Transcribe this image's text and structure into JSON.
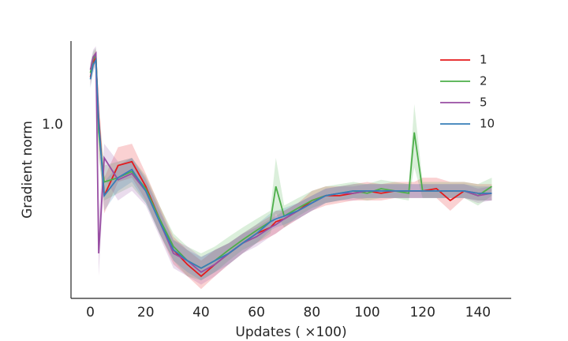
{
  "chart_data": {
    "type": "line",
    "xlabel": "Updates ( ×100)",
    "ylabel": "Gradient norm",
    "x": [
      0,
      1,
      2,
      3,
      5,
      10,
      15,
      20,
      25,
      30,
      35,
      40,
      45,
      50,
      55,
      60,
      65,
      67,
      70,
      75,
      80,
      85,
      90,
      95,
      100,
      105,
      110,
      115,
      117,
      120,
      125,
      130,
      135,
      140,
      145
    ],
    "series": [
      {
        "name": "1",
        "color": "#e41a1c",
        "values": [
          1.38,
          1.52,
          1.58,
          1.05,
          0.62,
          0.76,
          0.78,
          0.66,
          0.53,
          0.43,
          0.39,
          0.36,
          0.39,
          0.42,
          0.45,
          0.48,
          0.5,
          0.52,
          0.53,
          0.56,
          0.6,
          0.62,
          0.62,
          0.63,
          0.64,
          0.63,
          0.64,
          0.64,
          0.64,
          0.64,
          0.65,
          0.6,
          0.64,
          0.63,
          0.63
        ],
        "lower": [
          1.3,
          1.45,
          1.5,
          0.85,
          0.55,
          0.68,
          0.7,
          0.6,
          0.48,
          0.39,
          0.36,
          0.33,
          0.36,
          0.39,
          0.42,
          0.45,
          0.47,
          0.48,
          0.5,
          0.53,
          0.56,
          0.58,
          0.59,
          0.6,
          0.6,
          0.6,
          0.61,
          0.61,
          0.61,
          0.61,
          0.61,
          0.56,
          0.61,
          0.6,
          0.6
        ],
        "upper": [
          1.46,
          1.6,
          1.66,
          1.2,
          0.7,
          0.86,
          0.88,
          0.72,
          0.58,
          0.47,
          0.43,
          0.4,
          0.43,
          0.45,
          0.48,
          0.51,
          0.54,
          0.56,
          0.56,
          0.59,
          0.64,
          0.66,
          0.66,
          0.67,
          0.68,
          0.67,
          0.68,
          0.68,
          0.68,
          0.7,
          0.7,
          0.68,
          0.68,
          0.67,
          0.67
        ]
      },
      {
        "name": "2",
        "color": "#4daf4a",
        "values": [
          1.42,
          1.56,
          1.6,
          0.95,
          0.68,
          0.7,
          0.73,
          0.65,
          0.53,
          0.44,
          0.4,
          0.38,
          0.4,
          0.43,
          0.46,
          0.49,
          0.52,
          0.66,
          0.54,
          0.57,
          0.6,
          0.62,
          0.63,
          0.64,
          0.63,
          0.65,
          0.64,
          0.63,
          0.95,
          0.64,
          0.64,
          0.64,
          0.64,
          0.62,
          0.66
        ],
        "lower": [
          1.34,
          1.48,
          1.52,
          0.8,
          0.6,
          0.63,
          0.66,
          0.59,
          0.48,
          0.4,
          0.36,
          0.35,
          0.37,
          0.4,
          0.43,
          0.45,
          0.48,
          0.55,
          0.5,
          0.54,
          0.57,
          0.59,
          0.6,
          0.61,
          0.6,
          0.61,
          0.61,
          0.6,
          0.75,
          0.61,
          0.61,
          0.61,
          0.61,
          0.58,
          0.62
        ],
        "upper": [
          1.5,
          1.64,
          1.68,
          1.1,
          0.76,
          0.78,
          0.8,
          0.71,
          0.58,
          0.48,
          0.44,
          0.42,
          0.44,
          0.47,
          0.5,
          0.53,
          0.56,
          0.8,
          0.58,
          0.61,
          0.64,
          0.66,
          0.67,
          0.68,
          0.67,
          0.69,
          0.68,
          0.67,
          1.15,
          0.68,
          0.68,
          0.68,
          0.68,
          0.67,
          0.7
        ]
      },
      {
        "name": "5",
        "color": "#984ea3",
        "values": [
          1.45,
          1.58,
          1.62,
          0.42,
          0.8,
          0.69,
          0.72,
          0.64,
          0.52,
          0.42,
          0.4,
          0.37,
          0.39,
          0.42,
          0.45,
          0.47,
          0.5,
          0.51,
          0.53,
          0.56,
          0.59,
          0.62,
          0.63,
          0.63,
          0.64,
          0.64,
          0.64,
          0.64,
          0.64,
          0.64,
          0.64,
          0.64,
          0.64,
          0.62,
          0.63
        ],
        "lower": [
          1.38,
          1.5,
          1.55,
          0.36,
          0.7,
          0.6,
          0.64,
          0.58,
          0.47,
          0.38,
          0.36,
          0.34,
          0.36,
          0.39,
          0.42,
          0.44,
          0.47,
          0.48,
          0.5,
          0.53,
          0.56,
          0.59,
          0.6,
          0.6,
          0.61,
          0.61,
          0.61,
          0.61,
          0.61,
          0.61,
          0.61,
          0.61,
          0.61,
          0.59,
          0.6
        ],
        "upper": [
          1.52,
          1.66,
          1.7,
          0.55,
          0.88,
          0.78,
          0.8,
          0.7,
          0.57,
          0.46,
          0.44,
          0.41,
          0.43,
          0.45,
          0.48,
          0.5,
          0.53,
          0.54,
          0.56,
          0.59,
          0.62,
          0.65,
          0.66,
          0.66,
          0.67,
          0.67,
          0.67,
          0.67,
          0.67,
          0.67,
          0.67,
          0.67,
          0.67,
          0.65,
          0.66
        ]
      },
      {
        "name": "10",
        "color": "#377eb8",
        "values": [
          1.36,
          1.5,
          1.55,
          1.02,
          0.62,
          0.7,
          0.74,
          0.64,
          0.52,
          0.43,
          0.4,
          0.38,
          0.4,
          0.42,
          0.45,
          0.48,
          0.52,
          0.53,
          0.54,
          0.56,
          0.59,
          0.62,
          0.63,
          0.64,
          0.64,
          0.64,
          0.64,
          0.64,
          0.64,
          0.64,
          0.64,
          0.64,
          0.64,
          0.63,
          0.63
        ],
        "lower": [
          1.28,
          1.42,
          1.48,
          0.9,
          0.56,
          0.64,
          0.68,
          0.59,
          0.48,
          0.4,
          0.37,
          0.35,
          0.37,
          0.39,
          0.42,
          0.45,
          0.49,
          0.5,
          0.51,
          0.53,
          0.56,
          0.59,
          0.6,
          0.61,
          0.61,
          0.61,
          0.61,
          0.61,
          0.61,
          0.61,
          0.61,
          0.61,
          0.61,
          0.6,
          0.6
        ],
        "upper": [
          1.44,
          1.58,
          1.62,
          1.14,
          0.68,
          0.76,
          0.8,
          0.69,
          0.56,
          0.46,
          0.43,
          0.41,
          0.43,
          0.45,
          0.48,
          0.51,
          0.55,
          0.56,
          0.57,
          0.59,
          0.62,
          0.65,
          0.66,
          0.67,
          0.67,
          0.67,
          0.67,
          0.67,
          0.67,
          0.67,
          0.67,
          0.67,
          0.67,
          0.66,
          0.66
        ]
      }
    ],
    "xlim": [
      -7,
      152
    ],
    "xticks": [
      0,
      20,
      40,
      60,
      80,
      100,
      120,
      140
    ],
    "ylim": [
      0.31,
      1.76
    ],
    "yticks": [
      {
        "value": 1,
        "label": "1.0"
      }
    ],
    "yscale": "log",
    "grid": false,
    "legend": "upper right"
  }
}
